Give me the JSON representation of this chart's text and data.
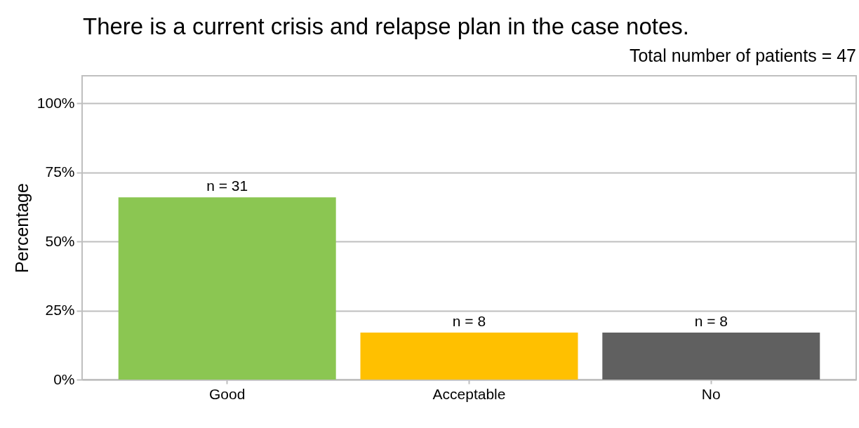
{
  "chart_data": {
    "type": "bar",
    "title": "There is a current crisis and relapse plan in the case notes.",
    "subtitle": "Total number of patients = 47",
    "ylabel": "Percentage",
    "categories": [
      "Good",
      "Acceptable",
      "No"
    ],
    "values": [
      66,
      17,
      17
    ],
    "colors": [
      "#8bc652",
      "#ffc000",
      "#606060"
    ],
    "annotations": [
      {
        "text": "n = 31",
        "x": "Good",
        "y": 66
      },
      {
        "text": "n = 8",
        "x": "Acceptable",
        "y": 17
      },
      {
        "text": "n = 8",
        "x": "No",
        "y": 17
      }
    ],
    "ylim": [
      0,
      110
    ],
    "yticks": [
      {
        "value": 0,
        "label": "0%"
      },
      {
        "value": 25,
        "label": "25%"
      },
      {
        "value": 50,
        "label": "50%"
      },
      {
        "value": 75,
        "label": "75%"
      },
      {
        "value": 100,
        "label": "100%"
      }
    ],
    "grid": "y"
  }
}
